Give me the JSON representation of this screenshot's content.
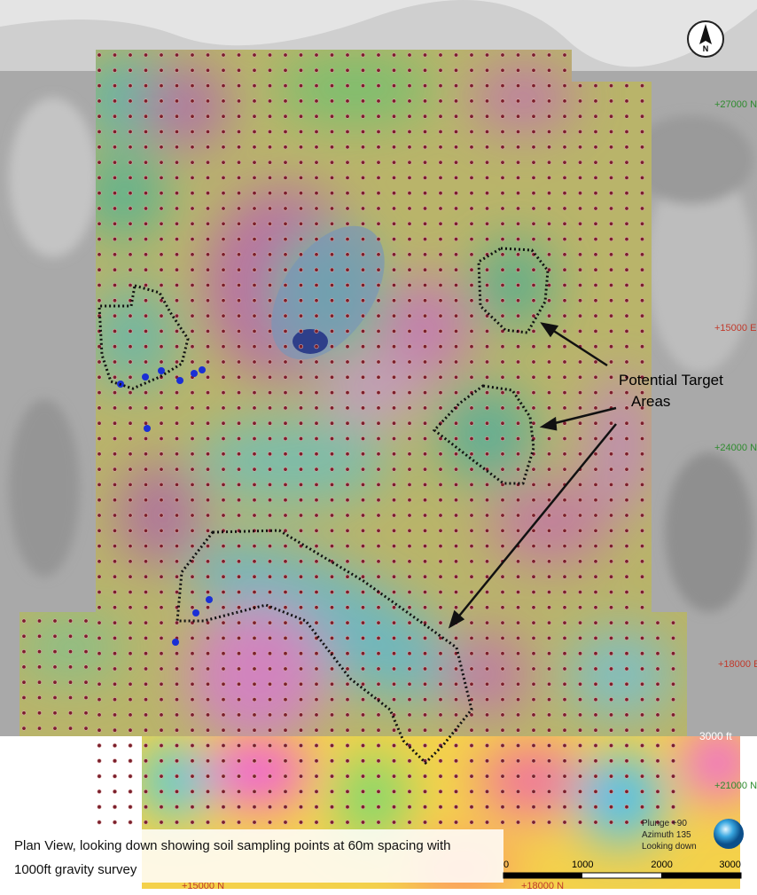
{
  "north_arrow": {
    "label": "N"
  },
  "grid_labels": {
    "n1": "+27000 N",
    "e1": "+15000 E",
    "n2": "+24000 N",
    "e2": "+18000 E",
    "n3": "+21000 N",
    "ft": "3000 ft",
    "b1": "+15000 N",
    "b2": "+18000 N"
  },
  "callout": {
    "line1": "Potential Target",
    "line2": "Areas"
  },
  "caption": {
    "line1": "Plan View, looking down showing soil sampling points at 60m spacing with",
    "line2": "1000ft gravity survey"
  },
  "view_info": {
    "plunge": "Plunge +90",
    "azimuth": "Azimuth 135",
    "looking": "Looking down"
  },
  "scale_bar": {
    "labels": [
      0,
      1000,
      2000,
      3000
    ]
  }
}
